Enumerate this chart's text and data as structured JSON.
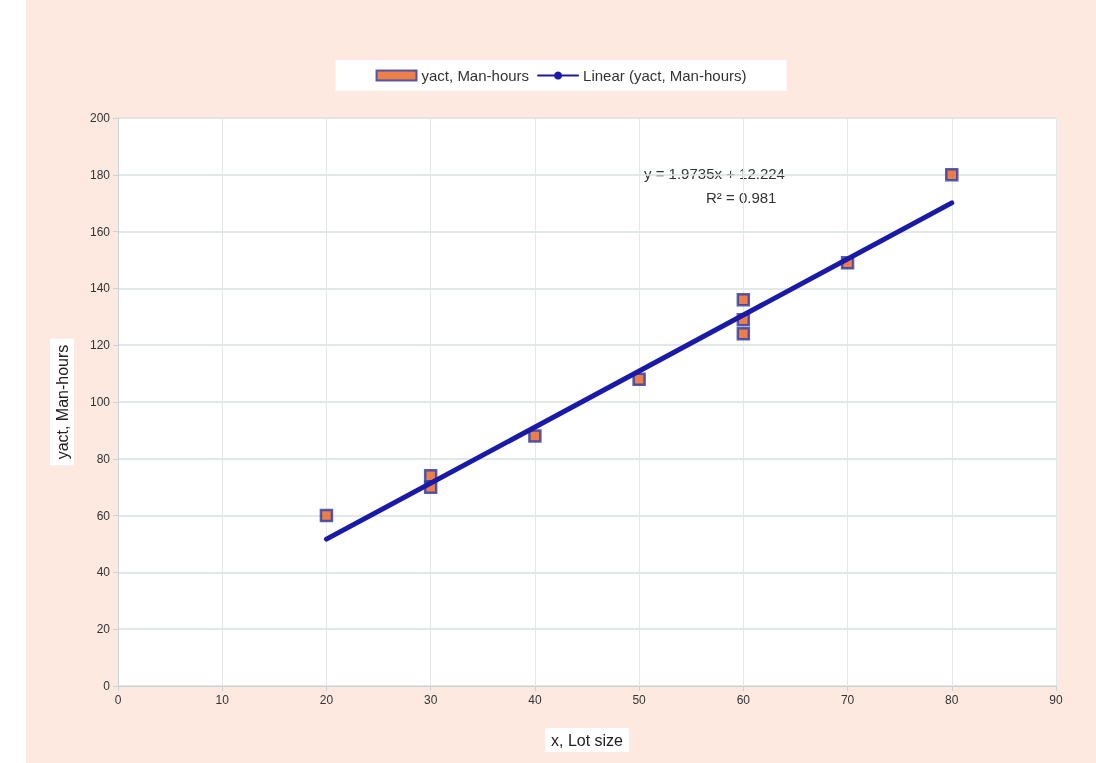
{
  "chart_data": {
    "type": "scatter",
    "xlabel": "x, Lot size",
    "ylabel": "yact, Man-hours",
    "x": [
      20,
      30,
      30,
      40,
      50,
      60,
      60,
      60,
      70,
      80
    ],
    "series": [
      {
        "name": "yact, Man-hours",
        "color": "#e8601c",
        "marker": "square",
        "values": [
          60,
          74,
          70,
          88,
          108,
          136,
          129,
          124,
          149,
          180
        ]
      },
      {
        "name": "Linear (yact, Man-hours)",
        "type": "line",
        "color": "#1a1aa8",
        "marker": "none",
        "x": [
          20,
          80
        ],
        "values": [
          51.7,
          170.1
        ]
      }
    ],
    "annotations": [
      "y = 1.9735x + 12.224",
      "R² = 0.981"
    ],
    "xlim": [
      0,
      90
    ],
    "xticks": [
      0,
      10,
      20,
      30,
      40,
      50,
      60,
      70,
      80,
      90
    ],
    "ylim": [
      0,
      200
    ],
    "yticks": [
      0,
      20,
      40,
      60,
      80,
      100,
      120,
      140,
      160,
      180,
      200
    ],
    "grid": true,
    "legend": "top"
  }
}
